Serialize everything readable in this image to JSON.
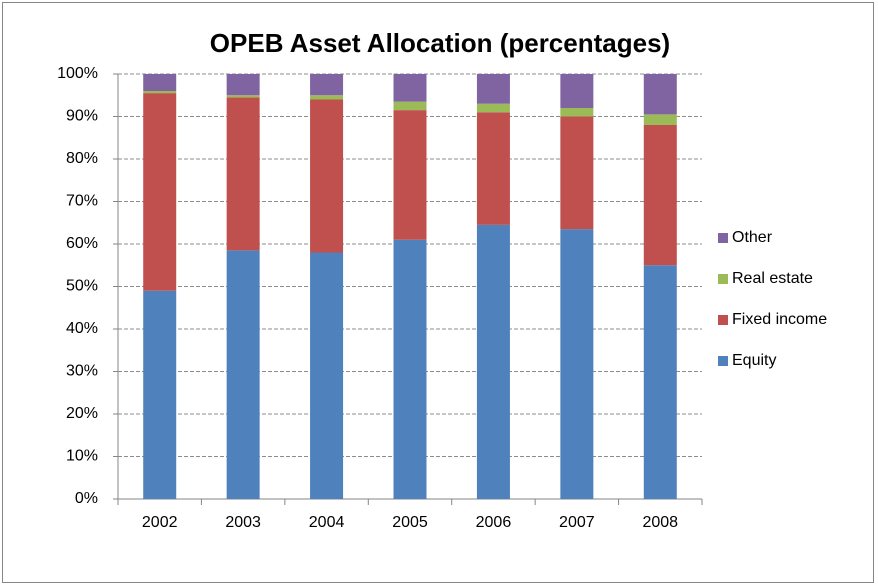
{
  "chart_data": {
    "type": "stacked_bar",
    "title": "OPEB Asset Allocation (percentages)",
    "categories": [
      "2002",
      "2003",
      "2004",
      "2005",
      "2006",
      "2007",
      "2008"
    ],
    "series": [
      {
        "name": "Equity",
        "color": "#4f81bd",
        "values": [
          49,
          58.5,
          58,
          61,
          64.5,
          63.5,
          55
        ]
      },
      {
        "name": "Fixed income",
        "color": "#c0504d",
        "values": [
          46.5,
          36,
          36,
          30.5,
          26.5,
          26.5,
          33
        ]
      },
      {
        "name": "Real estate",
        "color": "#9bbb59",
        "values": [
          0.5,
          0.5,
          1,
          2,
          2,
          2,
          2.5
        ]
      },
      {
        "name": "Other",
        "color": "#8064a2",
        "values": [
          4,
          5,
          5,
          6.5,
          7,
          8,
          9.5
        ]
      }
    ],
    "ylim": [
      0,
      100
    ],
    "yticks": [
      {
        "value": 0,
        "label": "0%"
      },
      {
        "value": 10,
        "label": "10%"
      },
      {
        "value": 20,
        "label": "20%"
      },
      {
        "value": 30,
        "label": "30%"
      },
      {
        "value": 40,
        "label": "40%"
      },
      {
        "value": 50,
        "label": "50%"
      },
      {
        "value": 60,
        "label": "60%"
      },
      {
        "value": 70,
        "label": "70%"
      },
      {
        "value": 80,
        "label": "80%"
      },
      {
        "value": 90,
        "label": "90%"
      },
      {
        "value": 100,
        "label": "100%"
      }
    ],
    "grid": true,
    "legend": "right"
  }
}
